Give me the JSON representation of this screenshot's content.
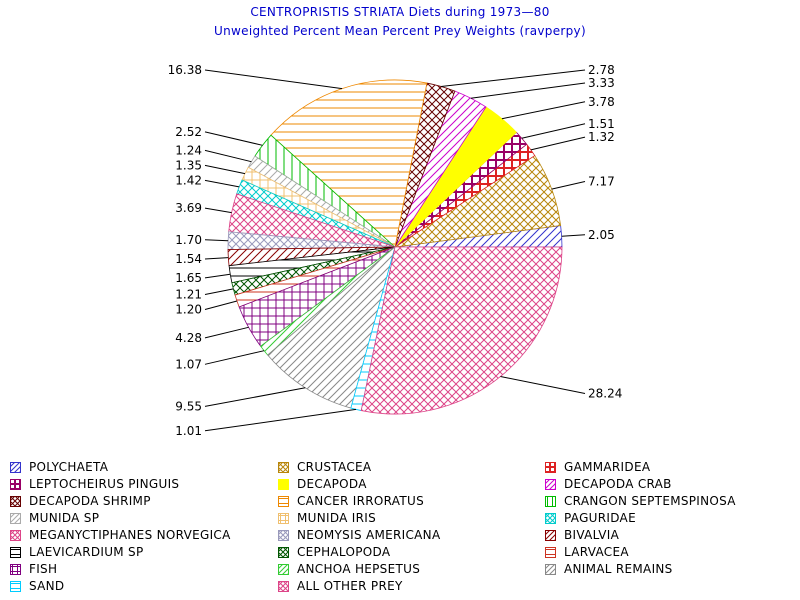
{
  "title": "CENTROPRISTIS STRIATA Diets during 1973—80",
  "subtitle": "Unweighted Percent Mean Percent Prey  Weights (ravperpy)",
  "chart_data": {
    "type": "pie",
    "title": "CENTROPRISTIS STRIATA Diets during 1973—80",
    "subtitle": "Unweighted Percent Mean Percent Prey  Weights (ravperpy)",
    "start_angle_deg": 0,
    "direction": "counterclockwise",
    "slices": [
      {
        "label": "POLYCHAETA",
        "value": 2.05,
        "value_label": "2.05",
        "color": "#3333cc",
        "pattern": "diag"
      },
      {
        "label": "CRUSTACEA",
        "value": 7.17,
        "value_label": "7.17",
        "color": "#b8860b",
        "pattern": "xhatch"
      },
      {
        "label": "GAMMARIDEA",
        "value": 1.32,
        "value_label": "1.32",
        "color": "#dd2222",
        "pattern": "box"
      },
      {
        "label": "LEPTOCHEIRUS PINGUIS",
        "value": 1.51,
        "value_label": "1.51",
        "color": "#990066",
        "pattern": "box"
      },
      {
        "label": "DECAPODA",
        "value": 3.78,
        "value_label": "3.78",
        "color": "#ffff00",
        "pattern": "solid"
      },
      {
        "label": "DECAPODA CRAB",
        "value": 3.33,
        "value_label": "3.33",
        "color": "#cc00cc",
        "pattern": "diag"
      },
      {
        "label": "DECAPODA SHRIMP",
        "value": 2.78,
        "value_label": "2.78",
        "color": "#660000",
        "pattern": "xhatch"
      },
      {
        "label": "CANCER IRRORATUS",
        "value": 16.38,
        "value_label": "16.38",
        "color": "#ee8800",
        "pattern": "hlines"
      },
      {
        "label": "CRANGON SEPTEMSPINOSA",
        "value": 2.52,
        "value_label": "2.52",
        "color": "#00bb00",
        "pattern": "vlines"
      },
      {
        "label": "MUNIDA SP",
        "value": 1.24,
        "value_label": "1.24",
        "color": "#aaaaaa",
        "pattern": "diag"
      },
      {
        "label": "MUNIDA IRIS",
        "value": 1.35,
        "value_label": "1.35",
        "color": "#f0c070",
        "pattern": "grid"
      },
      {
        "label": "PAGURIDAE",
        "value": 1.42,
        "value_label": "1.42",
        "color": "#00cccc",
        "pattern": "xhatch"
      },
      {
        "label": "MEGANYCTIPHANES NORVEGICA",
        "value": 3.69,
        "value_label": "3.69",
        "color": "#dd4488",
        "pattern": "xhatch"
      },
      {
        "label": "NEOMYSIS AMERICANA",
        "value": 1.7,
        "value_label": "1.70",
        "color": "#9999bb",
        "pattern": "xhatch"
      },
      {
        "label": "BIVALVIA",
        "value": 1.54,
        "value_label": "1.54",
        "color": "#880000",
        "pattern": "diag"
      },
      {
        "label": "LAEVICARDIUM SP",
        "value": 1.65,
        "value_label": "1.65",
        "color": "#000000",
        "pattern": "hlines"
      },
      {
        "label": "CEPHALOPODA",
        "value": 1.21,
        "value_label": "1.21",
        "color": "#005500",
        "pattern": "xhatch"
      },
      {
        "label": "LARVACEA",
        "value": 1.2,
        "value_label": "1.20",
        "color": "#cc3322",
        "pattern": "hlines"
      },
      {
        "label": "FISH",
        "value": 4.28,
        "value_label": "4.28",
        "color": "#800080",
        "pattern": "grid"
      },
      {
        "label": "ANCHOA HEPSETUS",
        "value": 1.07,
        "value_label": "1.07",
        "color": "#33cc33",
        "pattern": "diag"
      },
      {
        "label": "ANIMAL REMAINS",
        "value": 9.55,
        "value_label": "9.55",
        "color": "#888888",
        "pattern": "diag"
      },
      {
        "label": "SAND",
        "value": 1.01,
        "value_label": "1.01",
        "color": "#00ccff",
        "pattern": "hlines"
      },
      {
        "label": "ALL OTHER PREY",
        "value": 28.24,
        "value_label": "28.24",
        "color": "#dd4488",
        "pattern": "xhatch"
      }
    ],
    "legend_position": "bottom",
    "legend_columns": 3
  }
}
